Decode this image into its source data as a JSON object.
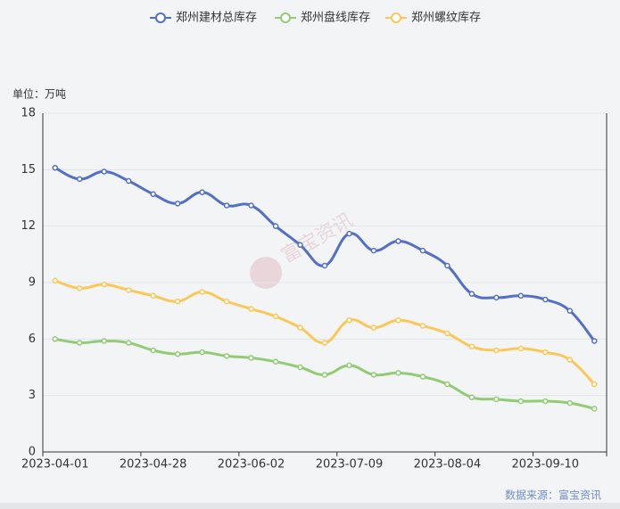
{
  "chart_data": {
    "type": "line",
    "unit_label": "单位：万吨",
    "source": "数据来源：富宝资讯",
    "watermark": "富宝资讯",
    "categories": [
      "2023-04-01",
      null,
      null,
      null,
      "2023-04-28",
      null,
      null,
      null,
      "2023-06-02",
      null,
      null,
      null,
      "2023-07-09",
      null,
      null,
      null,
      "2023-08-04",
      null,
      null,
      null,
      "2023-09-10",
      null,
      null
    ],
    "series": [
      {
        "name": "郑州建材总库存",
        "color": "#5470c6",
        "values": [
          15.1,
          14.5,
          14.9,
          14.4,
          13.7,
          13.2,
          13.8,
          13.1,
          13.1,
          12.0,
          11.0,
          9.9,
          11.6,
          10.7,
          11.2,
          10.7,
          9.9,
          8.4,
          8.2,
          8.3,
          8.1,
          7.5,
          5.9
        ]
      },
      {
        "name": "郑州盘线库存",
        "color": "#91cc75",
        "values": [
          6.0,
          5.8,
          5.9,
          5.8,
          5.4,
          5.2,
          5.3,
          5.1,
          5.0,
          4.8,
          4.5,
          4.1,
          4.6,
          4.1,
          4.2,
          4.0,
          3.6,
          2.9,
          2.8,
          2.7,
          2.7,
          2.6,
          2.3
        ]
      },
      {
        "name": "郑州螺纹库存",
        "color": "#fac858",
        "values": [
          9.1,
          8.7,
          8.9,
          8.6,
          8.3,
          8.0,
          8.5,
          8.0,
          7.6,
          7.2,
          6.6,
          5.8,
          7.0,
          6.6,
          7.0,
          6.7,
          6.3,
          5.6,
          5.4,
          5.5,
          5.3,
          4.9,
          3.6
        ]
      }
    ],
    "ylim": [
      0,
      18
    ],
    "yticks": [
      0,
      3,
      6,
      9,
      12,
      15,
      18
    ],
    "grid": true,
    "smooth": true,
    "legend": "top"
  }
}
